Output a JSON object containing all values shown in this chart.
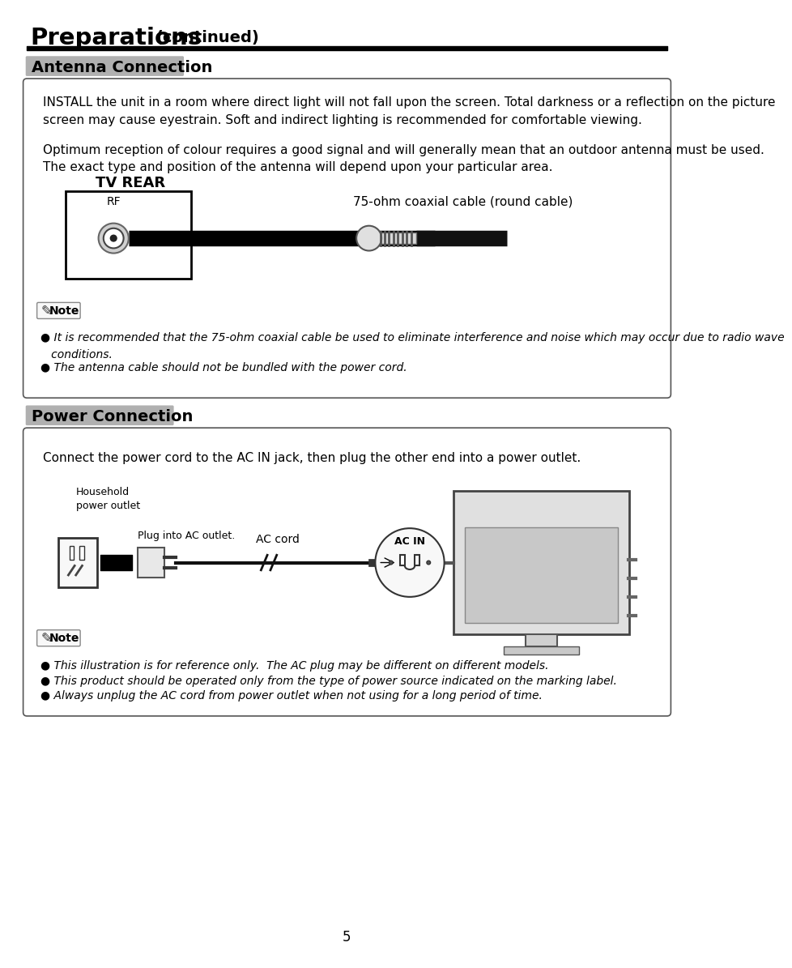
{
  "page_title": "Preparations",
  "page_title_suffix": "(continued)",
  "page_number": "5",
  "bg_color": "#ffffff",
  "section1_title": "Antenna Connection",
  "section2_title": "Power Connection",
  "antenna_para1": "INSTALL the unit in a room where direct light will not fall upon the screen. Total darkness or a reflection on the picture\nscreen may cause eyestrain. Soft and indirect lighting is recommended for comfortable viewing.",
  "antenna_para2": "Optimum reception of colour requires a good signal and will generally mean that an outdoor antenna must be used.\nThe exact type and position of the antenna will depend upon your particular area.",
  "tv_rear_label": "TV REAR",
  "rf_label": "RF",
  "cable_label": "75-ohm coaxial cable (round cable)",
  "note_label": "Note",
  "antenna_note1": "● It is recommended that the 75-ohm coaxial cable be used to eliminate interference and noise which may occur due to radio wave",
  "antenna_note1b": "   conditions.",
  "antenna_note2": "● The antenna cable should not be bundled with the power cord.",
  "power_para": "Connect the power cord to the AC IN jack, then plug the other end into a power outlet.",
  "household_label": "Household\npower outlet",
  "plug_label": "Plug into AC outlet.",
  "ac_cord_label": "AC cord",
  "ac_in_label": "AC IN",
  "power_note1": "● This illustration is for reference only.  The AC plug may be different on different models.",
  "power_note2": "● This product should be operated only from the type of power source indicated on the marking label.",
  "power_note3": "● Always unplug the AC cord from power outlet when not using for a long period of time."
}
